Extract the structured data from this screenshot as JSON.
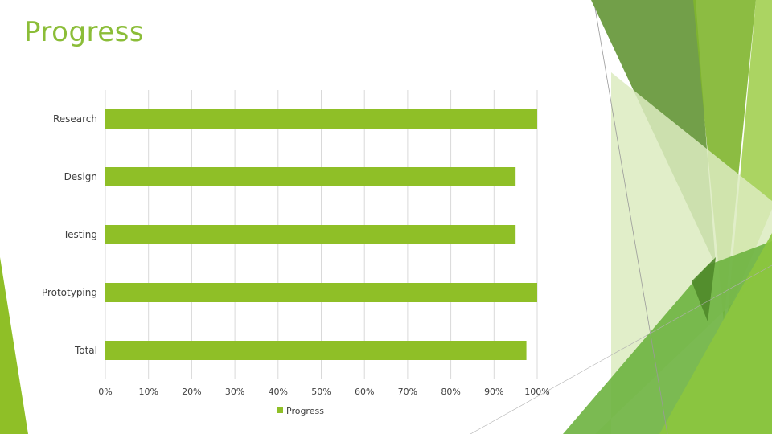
{
  "slide": {
    "title": "Progress"
  },
  "colors": {
    "accent": "#8fbf27",
    "title": "#8bbd38",
    "grid": "#d9d9d9",
    "text": "#404040"
  },
  "chart_data": {
    "type": "bar",
    "orientation": "horizontal",
    "categories": [
      "Research",
      "Design",
      "Testing",
      "Prototyping",
      "Total"
    ],
    "series": [
      {
        "name": "Progress",
        "values": [
          1.0,
          0.95,
          0.95,
          1.0,
          0.975
        ]
      }
    ],
    "xlim": [
      0,
      1
    ],
    "x_ticks": [
      "0%",
      "10%",
      "20%",
      "30%",
      "40%",
      "50%",
      "60%",
      "70%",
      "80%",
      "90%",
      "100%"
    ],
    "grid": true,
    "legend": "bottom",
    "title": "",
    "xlabel": "",
    "ylabel": ""
  }
}
